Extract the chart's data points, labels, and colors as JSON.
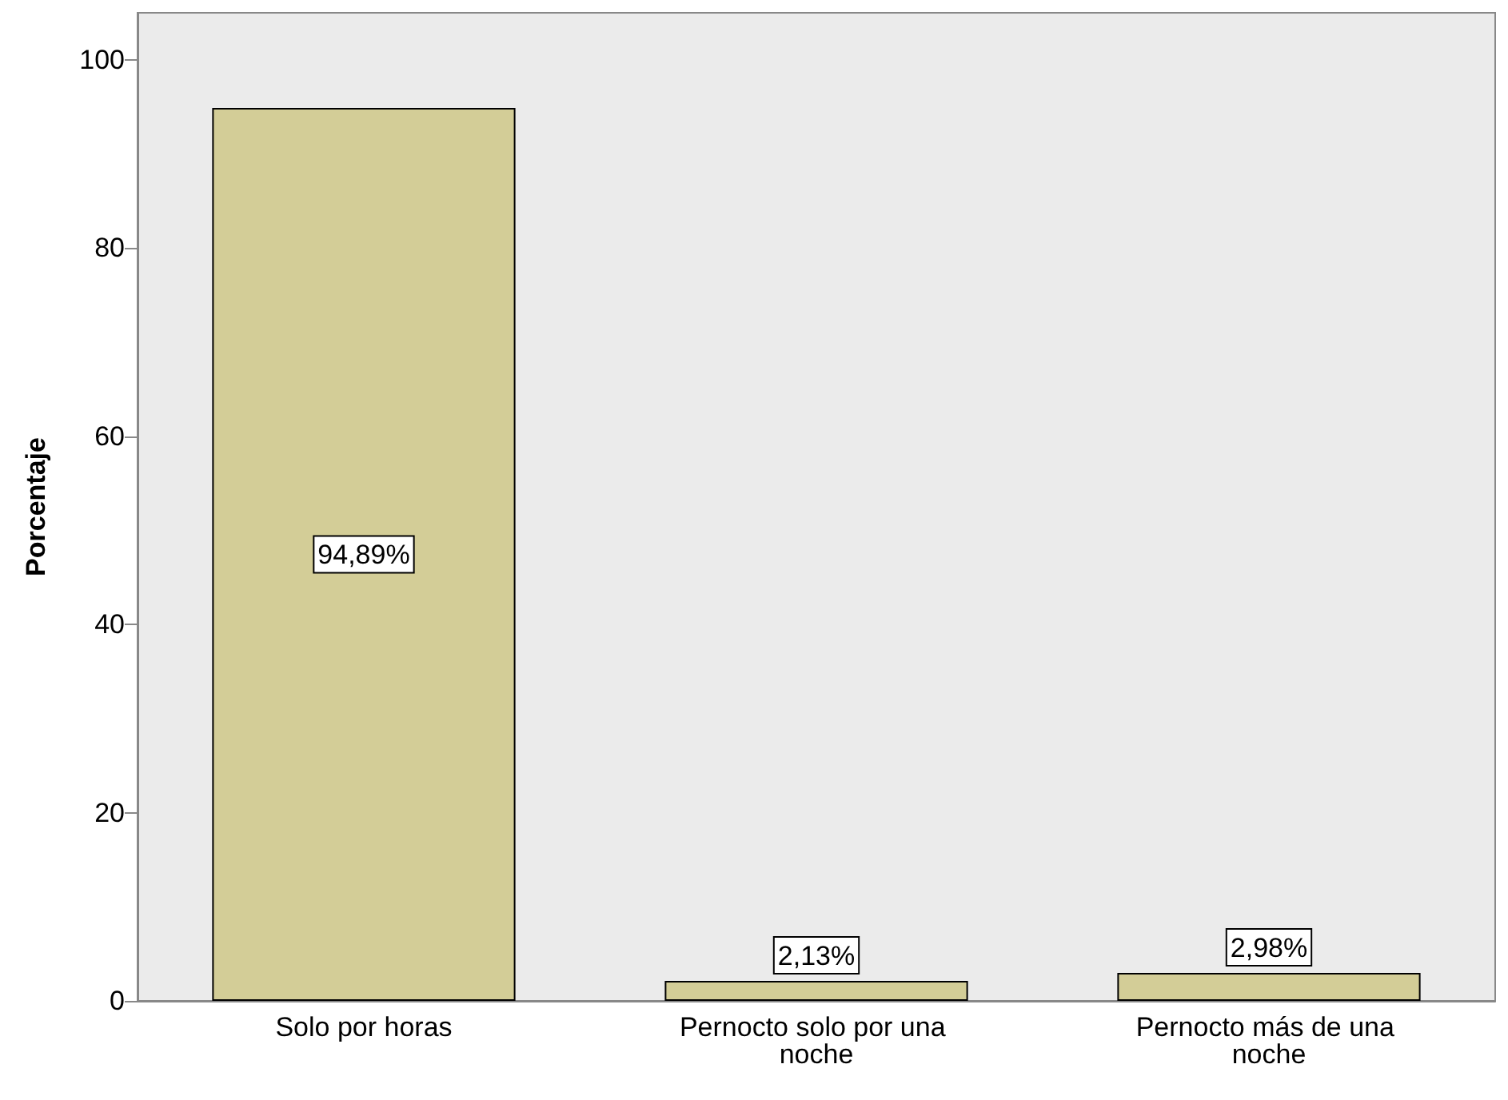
{
  "chart_data": {
    "type": "bar",
    "ylabel": "Porcentaje",
    "categories": [
      "Solo por horas",
      "Pernocto solo por una noche",
      "Pernocto más de una noche"
    ],
    "values": [
      94.89,
      2.13,
      2.98
    ],
    "value_labels": [
      "94,89%",
      "2,13%",
      "2,98%"
    ],
    "color": "#d3cd97",
    "ylim": [
      0,
      105
    ],
    "yticks": [
      0,
      20,
      40,
      60,
      80,
      100
    ],
    "grid": false
  }
}
